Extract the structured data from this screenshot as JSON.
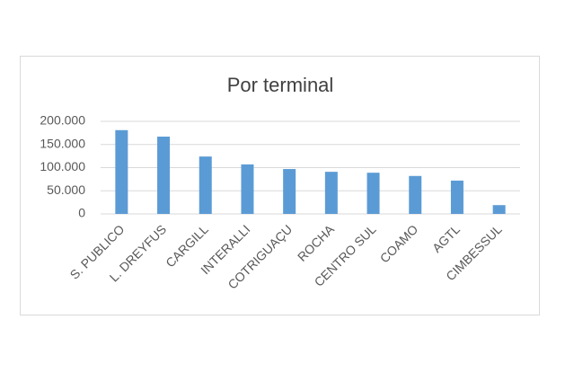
{
  "chart_data": {
    "type": "bar",
    "title": "Por terminal",
    "categories": [
      "S. PUBLICO",
      "L. DREYFUS",
      "CARGILL",
      "INTERALLI",
      "COTRIGUAÇU",
      "ROCHA",
      "CENTRO SUL",
      "COAMO",
      "AGTL",
      "CIMBESSUL"
    ],
    "values": [
      181000,
      167000,
      124000,
      107000,
      97000,
      91000,
      89000,
      82000,
      72000,
      19000
    ],
    "color": "#5b9bd5",
    "ylim": [
      0,
      200000
    ],
    "yticks": [
      0,
      {
        "value": 50000,
        "label": "50.000"
      },
      {
        "value": 100000,
        "label": "100.000"
      },
      {
        "value": 150000,
        "label": "150.000"
      },
      {
        "value": 200000,
        "label": "200.000"
      }
    ],
    "grid": true
  }
}
